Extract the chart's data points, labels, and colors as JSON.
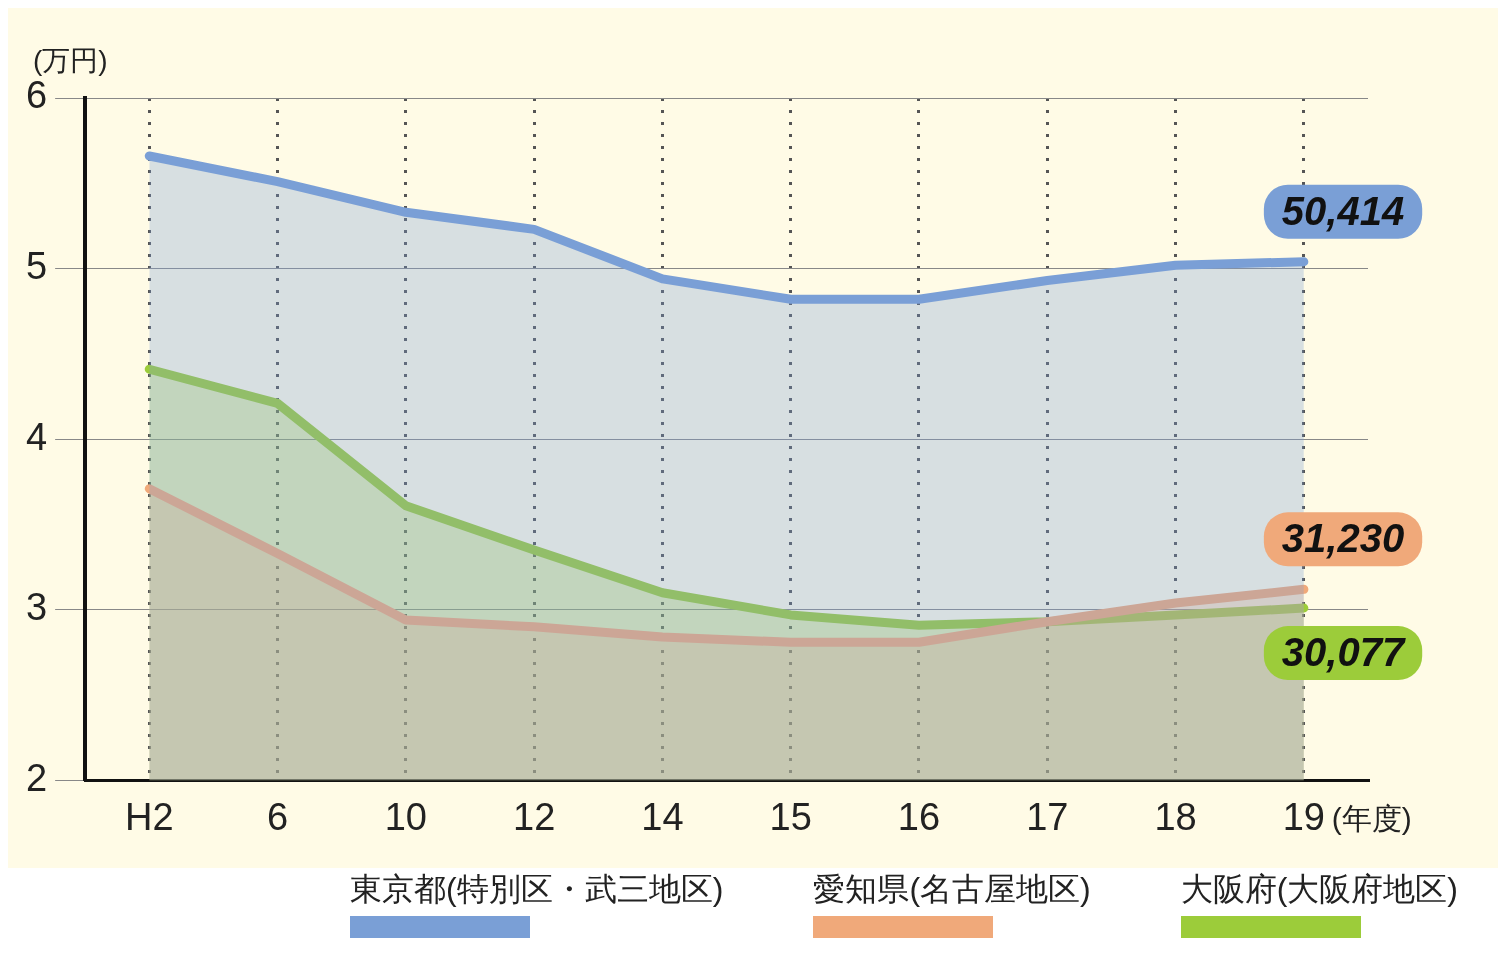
{
  "chart_data": {
    "type": "area",
    "ylabel": "(万円)",
    "xlabel": "(年度)",
    "categories": [
      "H2",
      "6",
      "10",
      "12",
      "14",
      "15",
      "16",
      "17",
      "18",
      "19"
    ],
    "ylim": [
      2,
      6
    ],
    "yticks": [
      2,
      3,
      4,
      5,
      6
    ],
    "grid": true,
    "legend": "bottom",
    "series": [
      {
        "name": "東京都(特別区・武三地区)",
        "color": "#7a9fd6",
        "values": [
          5.66,
          5.51,
          5.33,
          5.23,
          4.94,
          4.82,
          4.82,
          4.93,
          5.02,
          5.04
        ]
      },
      {
        "name": "愛知県(名古屋地区)",
        "color": "#f0a97a",
        "values": [
          3.71,
          3.33,
          2.94,
          2.9,
          2.84,
          2.81,
          2.81,
          2.93,
          3.04,
          3.12
        ]
      },
      {
        "name": "大阪府(大阪府地区)",
        "color": "#9ccc3a",
        "values": [
          4.41,
          4.21,
          3.61,
          3.35,
          3.1,
          2.97,
          2.91,
          2.93,
          2.97,
          3.01
        ]
      }
    ],
    "annotations": [
      {
        "text": "50,414",
        "x": "19",
        "y": 5.04
      },
      {
        "text": "31,230",
        "x": "19",
        "y": 3.12
      },
      {
        "text": "30,077",
        "x": "19",
        "y": 3.01
      }
    ]
  }
}
